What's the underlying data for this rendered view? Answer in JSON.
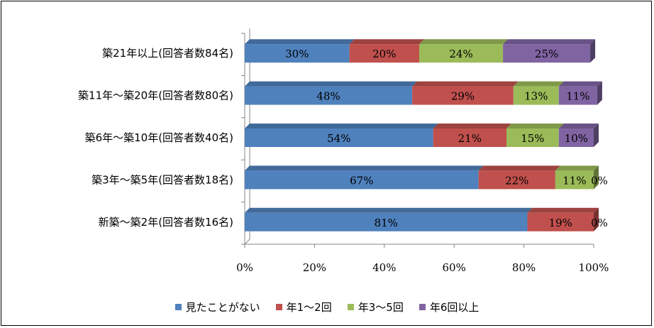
{
  "chart_data": {
    "type": "bar",
    "orientation": "horizontal",
    "stacked": true,
    "percent_stacked": true,
    "categories": [
      "築21年以上(回答者数84名)",
      "築11年～築20年(回答者数80名)",
      "築6年～築10年(回答者数40名)",
      "築3年～築5年(回答者数18名)",
      "新築～築2年(回答者数16名)"
    ],
    "series": [
      {
        "name": "見たことがない",
        "color": "#4F81BD",
        "values": [
          30,
          48,
          54,
          67,
          81
        ],
        "labels": [
          "30%",
          "48%",
          "54%",
          "67%",
          "81%"
        ]
      },
      {
        "name": "年1～2回",
        "color": "#C0504D",
        "values": [
          20,
          29,
          21,
          22,
          19
        ],
        "labels": [
          "20%",
          "29%",
          "21%",
          "22%",
          "19%"
        ]
      },
      {
        "name": "年3～5回",
        "color": "#9BBB59",
        "values": [
          24,
          13,
          15,
          11,
          0
        ],
        "labels": [
          "24%",
          "13%",
          "15%",
          "11%",
          "0%"
        ]
      },
      {
        "name": "年6回以上",
        "color": "#8064A2",
        "values": [
          25,
          11,
          10,
          0,
          0
        ],
        "labels": [
          "25%",
          "11%",
          "10%",
          "0%",
          ""
        ]
      }
    ],
    "xlim": [
      0,
      100
    ],
    "xticks": [
      "0%",
      "20%",
      "40%",
      "60%",
      "80%",
      "100%"
    ],
    "legend_position": "bottom",
    "grid": false
  }
}
